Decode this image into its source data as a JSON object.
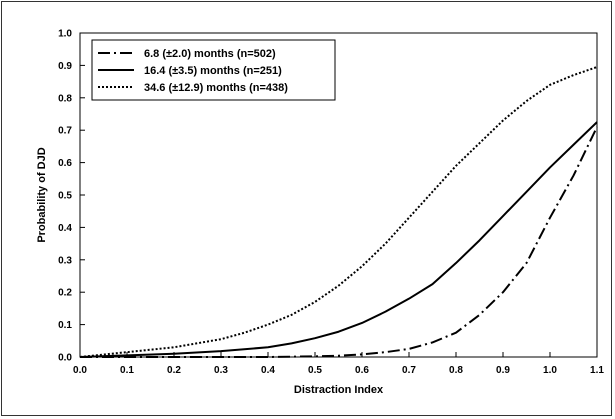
{
  "chart_data": {
    "type": "line",
    "xlabel": "Distraction Index",
    "ylabel": "Probability of DJD",
    "xlim": [
      0.0,
      1.1
    ],
    "ylim": [
      0.0,
      1.0
    ],
    "xticks": [
      "0.0",
      "0.1",
      "0.2",
      "0.3",
      "0.4",
      "0.5",
      "0.6",
      "0.7",
      "0.8",
      "0.9",
      "1.0",
      "1.1"
    ],
    "yticks": [
      "0.0",
      "0.1",
      "0.2",
      "0.3",
      "0.4",
      "0.5",
      "0.6",
      "0.7",
      "0.8",
      "0.9",
      "1.0"
    ],
    "grid": false,
    "legend_position": "top-left",
    "series": [
      {
        "name": "6.8 (±2.0)  months (n=502)",
        "style": "dash-dot",
        "color": "#000000",
        "x": [
          0.0,
          0.1,
          0.2,
          0.3,
          0.4,
          0.5,
          0.55,
          0.6,
          0.65,
          0.7,
          0.75,
          0.8,
          0.85,
          0.9,
          0.95,
          1.0,
          1.05,
          1.1
        ],
        "y": [
          0.0,
          0.0,
          0.0,
          0.0,
          0.0,
          0.002,
          0.004,
          0.008,
          0.015,
          0.025,
          0.045,
          0.075,
          0.13,
          0.2,
          0.29,
          0.43,
          0.56,
          0.71
        ]
      },
      {
        "name": "16.4 (±3.5) months (n=251)",
        "style": "solid",
        "color": "#000000",
        "x": [
          0.0,
          0.1,
          0.2,
          0.3,
          0.4,
          0.45,
          0.5,
          0.55,
          0.6,
          0.65,
          0.7,
          0.75,
          0.8,
          0.85,
          0.9,
          0.95,
          1.0,
          1.05,
          1.1
        ],
        "y": [
          0.0,
          0.005,
          0.01,
          0.018,
          0.03,
          0.042,
          0.058,
          0.078,
          0.105,
          0.14,
          0.18,
          0.225,
          0.29,
          0.36,
          0.435,
          0.51,
          0.585,
          0.655,
          0.725
        ]
      },
      {
        "name": "34.6 (±12.9) months (n=438)",
        "style": "dotted",
        "color": "#000000",
        "x": [
          0.0,
          0.1,
          0.2,
          0.3,
          0.35,
          0.4,
          0.45,
          0.5,
          0.55,
          0.6,
          0.65,
          0.7,
          0.75,
          0.8,
          0.85,
          0.9,
          0.95,
          1.0,
          1.05,
          1.1
        ],
        "y": [
          0.0,
          0.015,
          0.03,
          0.055,
          0.075,
          0.1,
          0.13,
          0.17,
          0.22,
          0.28,
          0.35,
          0.43,
          0.51,
          0.59,
          0.66,
          0.73,
          0.79,
          0.84,
          0.87,
          0.895
        ]
      }
    ]
  }
}
